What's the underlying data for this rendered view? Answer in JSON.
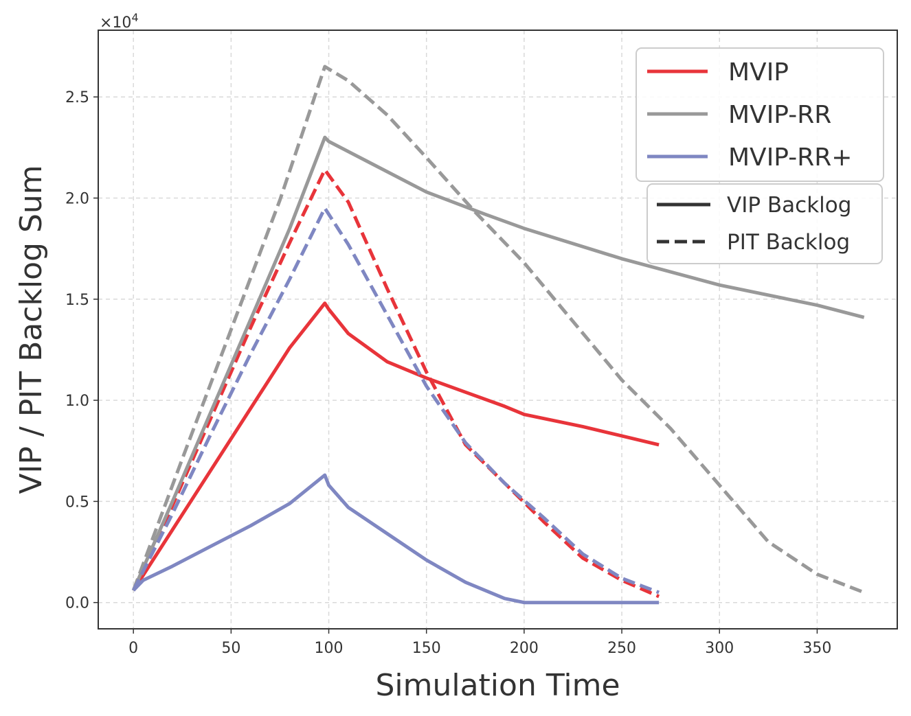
{
  "chart_data": {
    "type": "line",
    "xlabel": "Simulation Time",
    "ylabel": "VIP / PIT Backlog Sum",
    "y_multiplier": "×10",
    "y_multiplier_exp": "4",
    "xlim": [
      -18,
      391
    ],
    "ylim": [
      -0.13,
      2.83
    ],
    "x_ticks": [
      0,
      50,
      100,
      150,
      200,
      250,
      300,
      350
    ],
    "y_ticks": [
      0.0,
      0.5,
      1.0,
      1.5,
      2.0,
      2.5
    ],
    "x_tick_labels": [
      "0",
      "50",
      "100",
      "150",
      "200",
      "250",
      "300",
      "350"
    ],
    "y_tick_labels": [
      "0.0",
      "0.5",
      "1.0",
      "1.5",
      "2.0",
      "2.5"
    ],
    "grid": true,
    "legend_placement": "top-right",
    "legend_series": [
      {
        "label": "MVIP",
        "color": "#e8343a"
      },
      {
        "label": "MVIP-RR",
        "color": "#999999"
      },
      {
        "label": "MVIP-RR+",
        "color": "#7f87c2"
      }
    ],
    "legend_styles": [
      {
        "label": "VIP Backlog",
        "dash": "solid"
      },
      {
        "label": "PIT Backlog",
        "dash": "dashed"
      }
    ],
    "series": [
      {
        "name": "MVIP",
        "kind": "VIP Backlog",
        "color": "#e8343a",
        "dash": "solid",
        "x": [
          0,
          20,
          40,
          60,
          80,
          98,
          100,
          110,
          130,
          150,
          170,
          190,
          200,
          230,
          269
        ],
        "y": [
          0.06,
          0.36,
          0.66,
          0.96,
          1.26,
          1.48,
          1.45,
          1.33,
          1.19,
          1.11,
          1.04,
          0.97,
          0.93,
          0.87,
          0.78
        ]
      },
      {
        "name": "MVIP",
        "kind": "PIT Backlog",
        "color": "#e8343a",
        "dash": "dashed",
        "x": [
          0,
          20,
          40,
          60,
          80,
          98,
          110,
          130,
          150,
          170,
          190,
          210,
          230,
          250,
          269
        ],
        "y": [
          0.06,
          0.48,
          0.92,
          1.36,
          1.78,
          2.14,
          1.98,
          1.55,
          1.14,
          0.78,
          0.59,
          0.4,
          0.22,
          0.11,
          0.03
        ]
      },
      {
        "name": "MVIP-RR",
        "kind": "VIP Backlog",
        "color": "#999999",
        "dash": "solid",
        "x": [
          0,
          20,
          40,
          60,
          80,
          98,
          100,
          120,
          150,
          180,
          200,
          250,
          300,
          350,
          374
        ],
        "y": [
          0.06,
          0.5,
          0.95,
          1.4,
          1.85,
          2.3,
          2.28,
          2.18,
          2.03,
          1.92,
          1.85,
          1.7,
          1.57,
          1.47,
          1.41
        ]
      },
      {
        "name": "MVIP-RR",
        "kind": "PIT Backlog",
        "color": "#999999",
        "dash": "dashed",
        "x": [
          0,
          25,
          50,
          75,
          98,
          110,
          130,
          150,
          175,
          200,
          225,
          250,
          275,
          300,
          325,
          350,
          374
        ],
        "y": [
          0.06,
          0.71,
          1.35,
          1.99,
          2.65,
          2.58,
          2.41,
          2.2,
          1.93,
          1.68,
          1.39,
          1.1,
          0.86,
          0.58,
          0.3,
          0.14,
          0.05
        ]
      },
      {
        "name": "MVIP-RR+",
        "kind": "VIP Backlog",
        "color": "#7f87c2",
        "dash": "solid",
        "x": [
          0,
          5,
          20,
          40,
          60,
          80,
          98,
          100,
          110,
          130,
          150,
          170,
          190,
          200,
          230,
          269
        ],
        "y": [
          0.06,
          0.11,
          0.18,
          0.28,
          0.38,
          0.49,
          0.63,
          0.58,
          0.47,
          0.34,
          0.21,
          0.1,
          0.02,
          0.0,
          0.0,
          0.0
        ]
      },
      {
        "name": "MVIP-RR+",
        "kind": "PIT Backlog",
        "color": "#7f87c2",
        "dash": "dashed",
        "x": [
          0,
          20,
          40,
          60,
          80,
          98,
          110,
          130,
          150,
          170,
          190,
          210,
          230,
          250,
          269
        ],
        "y": [
          0.06,
          0.44,
          0.84,
          1.23,
          1.6,
          1.95,
          1.77,
          1.42,
          1.07,
          0.79,
          0.59,
          0.42,
          0.24,
          0.12,
          0.05
        ]
      }
    ]
  }
}
